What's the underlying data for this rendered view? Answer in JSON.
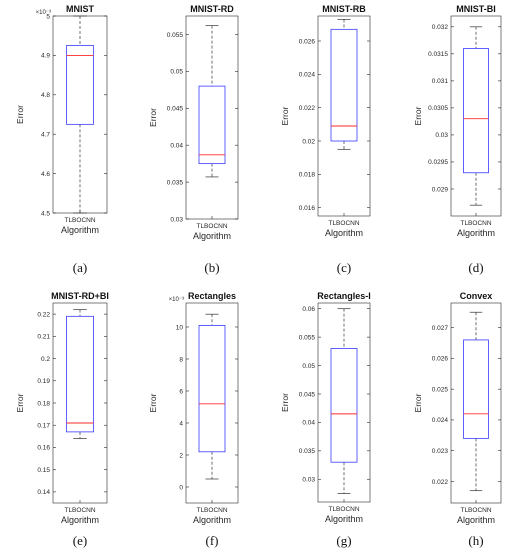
{
  "chart_data": [
    {
      "type": "box",
      "caption": "(a)",
      "title": "MNIST",
      "multiplier": "×10⁻³",
      "xlabel": "Algorithm",
      "ylabel": "Error",
      "category": "TLBOCNN",
      "ylim": [
        4.5,
        5.0
      ],
      "yticks": [
        {
          "v": 4.5,
          "t": "4.5"
        },
        {
          "v": 4.6,
          "t": "4.6"
        },
        {
          "v": 4.7,
          "t": "4.7"
        },
        {
          "v": 4.8,
          "t": "4.8"
        },
        {
          "v": 4.9,
          "t": "4.9"
        },
        {
          "v": 5.0,
          "t": "5"
        }
      ],
      "box": {
        "min": 4.5,
        "q1": 4.725,
        "median": 4.9,
        "q3": 4.925,
        "max": 5.0
      }
    },
    {
      "type": "box",
      "caption": "(b)",
      "title": "MNIST-RD",
      "multiplier": "",
      "xlabel": "Algorithm",
      "ylabel": "Error",
      "category": "TLBOCNN",
      "ylim": [
        0.03,
        0.0575
      ],
      "yticks": [
        {
          "v": 0.03,
          "t": "0.03"
        },
        {
          "v": 0.035,
          "t": "0.035"
        },
        {
          "v": 0.04,
          "t": "0.04"
        },
        {
          "v": 0.045,
          "t": "0.045"
        },
        {
          "v": 0.05,
          "t": "0.05"
        },
        {
          "v": 0.055,
          "t": "0.055"
        }
      ],
      "box": {
        "min": 0.0357,
        "q1": 0.0375,
        "median": 0.0387,
        "q3": 0.048,
        "max": 0.0562
      }
    },
    {
      "type": "box",
      "caption": "(c)",
      "title": "MNIST-RB",
      "multiplier": "",
      "xlabel": "Algorithm",
      "ylabel": "Error",
      "category": "TLBOCNN",
      "ylim": [
        0.0155,
        0.0275
      ],
      "yticks": [
        {
          "v": 0.016,
          "t": "0.016"
        },
        {
          "v": 0.018,
          "t": "0.018"
        },
        {
          "v": 0.02,
          "t": "0.02"
        },
        {
          "v": 0.022,
          "t": "0.022"
        },
        {
          "v": 0.024,
          "t": "0.024"
        },
        {
          "v": 0.026,
          "t": "0.026"
        }
      ],
      "box": {
        "min": 0.0195,
        "q1": 0.02,
        "median": 0.0209,
        "q3": 0.0267,
        "max": 0.0273
      }
    },
    {
      "type": "box",
      "caption": "(d)",
      "title": "MNIST-BI",
      "multiplier": "",
      "xlabel": "Algorithm",
      "ylabel": "Error",
      "category": "TLBOCNN",
      "ylim": [
        0.0285,
        0.0322
      ],
      "yticks": [
        {
          "v": 0.029,
          "t": "0.029"
        },
        {
          "v": 0.0295,
          "t": "0.0295"
        },
        {
          "v": 0.03,
          "t": "0.03"
        },
        {
          "v": 0.0305,
          "t": "0.0305"
        },
        {
          "v": 0.031,
          "t": "0.031"
        },
        {
          "v": 0.0315,
          "t": "0.0315"
        },
        {
          "v": 0.032,
          "t": "0.032"
        }
      ],
      "box": {
        "min": 0.0287,
        "q1": 0.0293,
        "median": 0.0303,
        "q3": 0.0316,
        "max": 0.032
      }
    },
    {
      "type": "box",
      "caption": "(e)",
      "title": "MNIST-RD+BI",
      "multiplier": "",
      "xlabel": "Algorithm",
      "ylabel": "Error",
      "category": "TLBOCNN",
      "ylim": [
        0.135,
        0.225
      ],
      "yticks": [
        {
          "v": 0.14,
          "t": "0.14"
        },
        {
          "v": 0.15,
          "t": "0.15"
        },
        {
          "v": 0.16,
          "t": "0.16"
        },
        {
          "v": 0.17,
          "t": "0.17"
        },
        {
          "v": 0.18,
          "t": "0.18"
        },
        {
          "v": 0.19,
          "t": "0.19"
        },
        {
          "v": 0.2,
          "t": "0.2"
        },
        {
          "v": 0.21,
          "t": "0.21"
        },
        {
          "v": 0.22,
          "t": "0.22"
        }
      ],
      "box": {
        "min": 0.164,
        "q1": 0.167,
        "median": 0.171,
        "q3": 0.219,
        "max": 0.222
      }
    },
    {
      "type": "box",
      "caption": "(f)",
      "title": "Rectangles",
      "multiplier": "×10⁻³",
      "xlabel": "Algorithm",
      "ylabel": "Error",
      "category": "TLBOCNN",
      "ylim": [
        -1,
        11.5
      ],
      "yticks": [
        {
          "v": 0,
          "t": "0"
        },
        {
          "v": 2,
          "t": "2"
        },
        {
          "v": 4,
          "t": "4"
        },
        {
          "v": 6,
          "t": "6"
        },
        {
          "v": 8,
          "t": "8"
        },
        {
          "v": 10,
          "t": "10"
        }
      ],
      "box": {
        "min": 0.5,
        "q1": 2.2,
        "median": 5.2,
        "q3": 10.1,
        "max": 10.8
      }
    },
    {
      "type": "box",
      "caption": "(g)",
      "title": "Rectangles-I",
      "multiplier": "",
      "xlabel": "Algorithm",
      "ylabel": "Error",
      "category": "TLBOCNN",
      "ylim": [
        0.026,
        0.061
      ],
      "yticks": [
        {
          "v": 0.03,
          "t": "0.03"
        },
        {
          "v": 0.035,
          "t": "0.035"
        },
        {
          "v": 0.04,
          "t": "0.04"
        },
        {
          "v": 0.045,
          "t": "0.045"
        },
        {
          "v": 0.05,
          "t": "0.05"
        },
        {
          "v": 0.055,
          "t": "0.055"
        },
        {
          "v": 0.06,
          "t": "0.06"
        }
      ],
      "box": {
        "min": 0.0275,
        "q1": 0.033,
        "median": 0.0415,
        "q3": 0.053,
        "max": 0.06
      }
    },
    {
      "type": "box",
      "caption": "(h)",
      "title": "Convex",
      "multiplier": "",
      "xlabel": "Algorithm",
      "ylabel": "Error",
      "category": "TLBOCNN",
      "ylim": [
        0.0213,
        0.0278
      ],
      "yticks": [
        {
          "v": 0.022,
          "t": "0.022"
        },
        {
          "v": 0.023,
          "t": "0.023"
        },
        {
          "v": 0.024,
          "t": "0.024"
        },
        {
          "v": 0.025,
          "t": "0.025"
        },
        {
          "v": 0.026,
          "t": "0.026"
        },
        {
          "v": 0.027,
          "t": "0.027"
        }
      ],
      "box": {
        "min": 0.0217,
        "q1": 0.0234,
        "median": 0.0242,
        "q3": 0.0266,
        "max": 0.0275
      }
    }
  ],
  "colors": {
    "box": "#3a3aff",
    "median": "#ff2a2a",
    "whisker": "#333333",
    "axis": "#262626"
  }
}
